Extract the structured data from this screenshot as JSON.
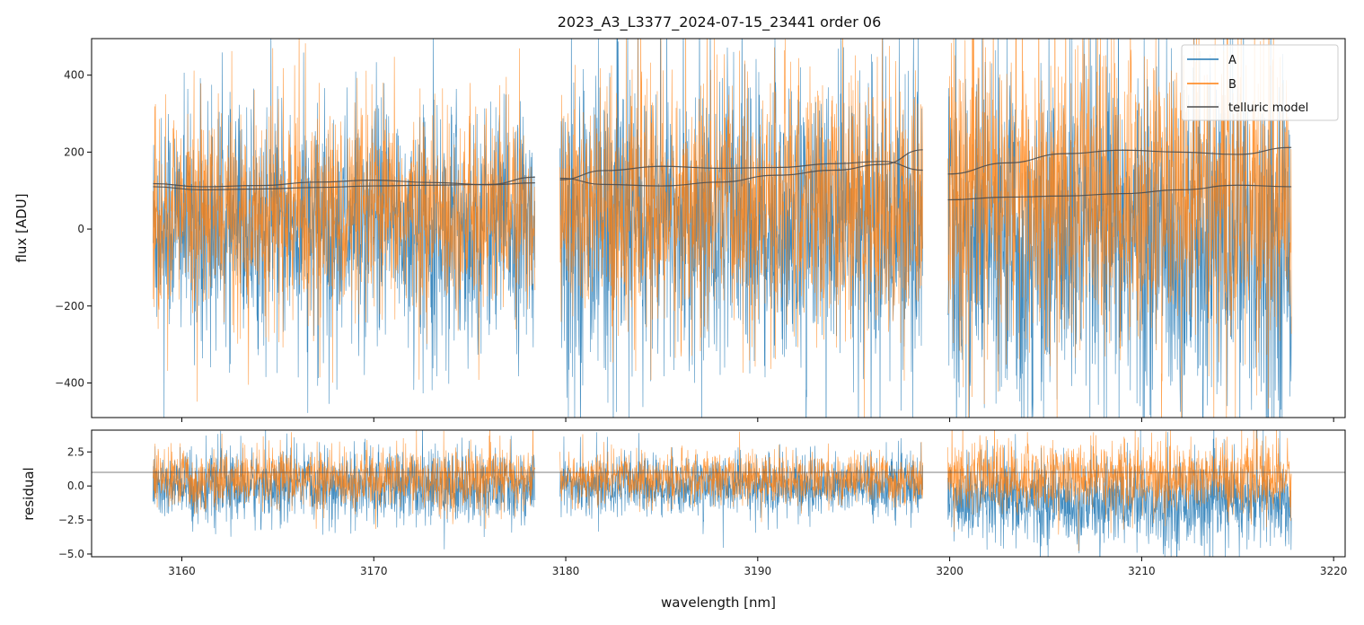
{
  "chart_data": [
    {
      "type": "line",
      "panel": "top",
      "title": "2023_A3_L3377_2024-07-15_23441  order 06",
      "xlabel": "",
      "ylabel": "flux [ADU]",
      "xlim": [
        3155.3,
        3220.6
      ],
      "ylim": [
        -490,
        495
      ],
      "yticks": [
        -400,
        -200,
        0,
        200,
        400
      ],
      "ytick_labels": [
        "−400",
        "−200",
        "0",
        "200",
        "400"
      ],
      "xticks": [
        3160,
        3170,
        3180,
        3190,
        3200,
        3210,
        3220
      ],
      "grid": false,
      "legend": {
        "placement": "top-right",
        "entries": [
          "A",
          "B",
          "telluric model"
        ]
      },
      "segments": [
        {
          "x_range": [
            3158.5,
            3178.4
          ],
          "A_level": 10,
          "A_noise": 150,
          "B_level": 40,
          "B_noise": 130
        },
        {
          "x_range": [
            3179.7,
            3198.6
          ],
          "A_level": 15,
          "A_noise": 190,
          "B_level": 55,
          "B_noise": 160
        },
        {
          "x_range": [
            3199.9,
            3217.8
          ],
          "A_level": -30,
          "A_noise": 230,
          "B_level": 80,
          "B_noise": 200
        }
      ],
      "series": [
        {
          "name": "A",
          "color": "#1f77b4",
          "description": "spectrum A (noise)"
        },
        {
          "name": "B",
          "color": "#ff7f0e",
          "description": "spectrum B (noise)"
        },
        {
          "name": "telluric model",
          "color": "#4d4d4d",
          "curves": [
            {
              "x": [
                3158.5,
                3161,
                3164,
                3167,
                3170,
                3173,
                3176,
                3178.4
              ],
              "y": [
                118,
                110,
                113,
                122,
                127,
                121,
                115,
                120
              ]
            },
            {
              "x": [
                3158.5,
                3161,
                3164,
                3167,
                3170,
                3173,
                3176,
                3178.4
              ],
              "y": [
                110,
                102,
                104,
                108,
                112,
                114,
                116,
                135
              ]
            },
            {
              "x": [
                3179.7,
                3182,
                3185,
                3188,
                3191,
                3194,
                3196.5,
                3198.6
              ],
              "y": [
                128,
                152,
                163,
                158,
                160,
                170,
                176,
                153
              ]
            },
            {
              "x": [
                3179.7,
                3182,
                3185,
                3188,
                3191,
                3194,
                3196.5,
                3198.6
              ],
              "y": [
                132,
                116,
                112,
                122,
                140,
                153,
                168,
                206
              ]
            },
            {
              "x": [
                3199.9,
                3203,
                3206,
                3209,
                3212,
                3215,
                3217.8
              ],
              "y": [
                143,
                172,
                196,
                205,
                200,
                194,
                212
              ]
            },
            {
              "x": [
                3199.9,
                3203,
                3206,
                3209,
                3212,
                3215,
                3217.8
              ],
              "y": [
                76,
                83,
                86,
                92,
                102,
                114,
                110
              ]
            }
          ]
        }
      ]
    },
    {
      "type": "line",
      "panel": "bottom",
      "xlabel": "wavelength [nm]",
      "ylabel": "residual",
      "xlim": [
        3155.3,
        3220.6
      ],
      "ylim": [
        -5.2,
        4.1
      ],
      "yticks": [
        -5.0,
        -2.5,
        0.0,
        2.5
      ],
      "ytick_labels": [
        "−5.0",
        "−2.5",
        "0.0",
        "2.5"
      ],
      "xticks": [
        3160,
        3170,
        3180,
        3190,
        3200,
        3210,
        3220
      ],
      "xtick_labels": [
        "3160",
        "3170",
        "3180",
        "3190",
        "3200",
        "3210",
        "3220"
      ],
      "reference_line": 1.0,
      "segments": [
        {
          "x_range": [
            3158.5,
            3178.4
          ],
          "A_level": -0.1,
          "A_noise": 1.3,
          "B_level": 0.5,
          "B_noise": 1.1
        },
        {
          "x_range": [
            3179.7,
            3198.6
          ],
          "A_level": 0.0,
          "A_noise": 1.1,
          "B_level": 0.5,
          "B_noise": 0.9
        },
        {
          "x_range": [
            3199.9,
            3217.8
          ],
          "A_level": -1.2,
          "A_noise": 1.6,
          "B_level": 0.6,
          "B_noise": 1.3
        }
      ],
      "series": [
        {
          "name": "A",
          "color": "#1f77b4"
        },
        {
          "name": "B",
          "color": "#ff7f0e"
        }
      ]
    }
  ]
}
